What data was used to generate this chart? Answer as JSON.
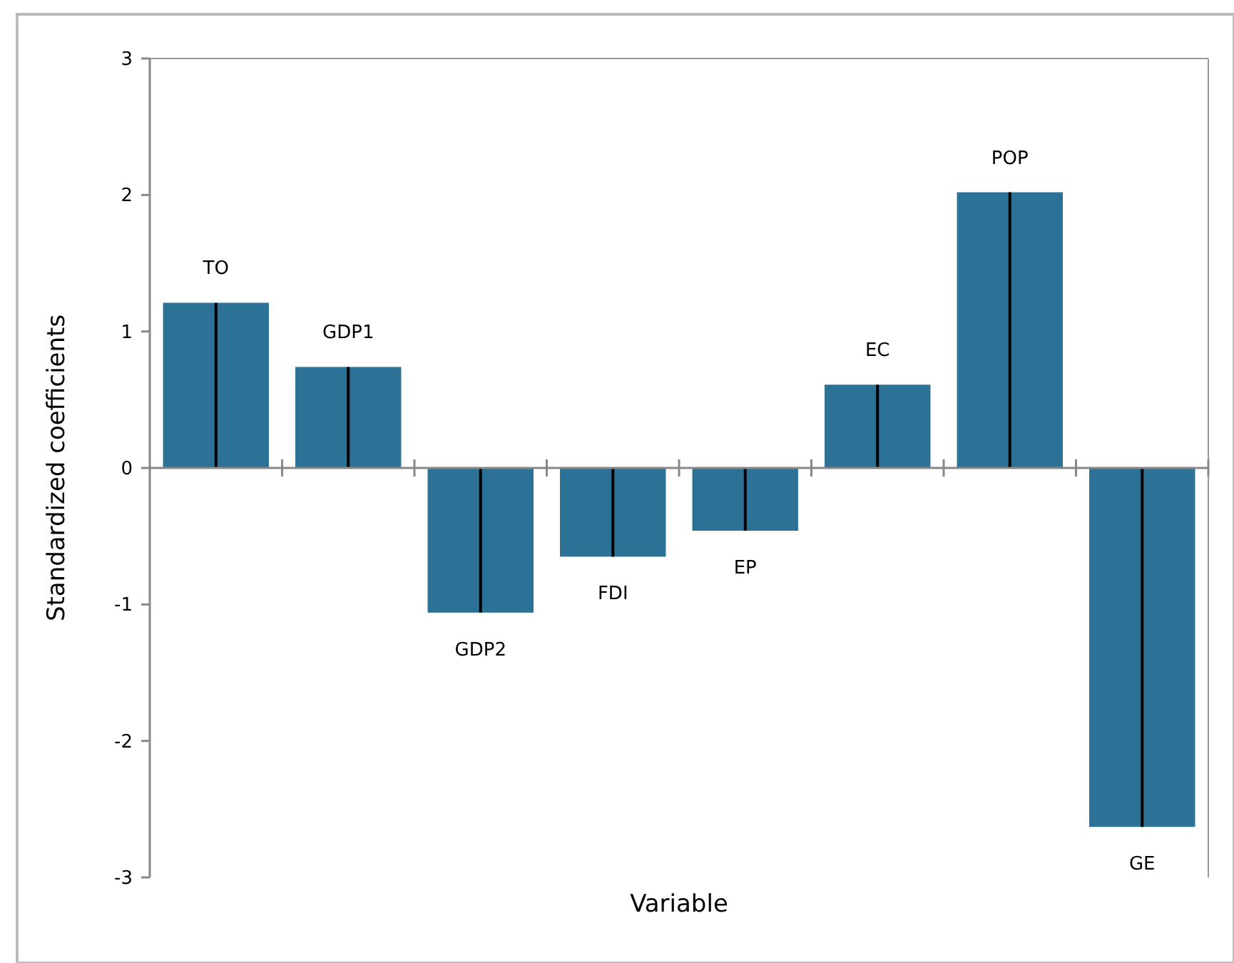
{
  "chart_data": {
    "type": "bar",
    "xlabel": "Variable",
    "ylabel": "Standardized coefficients",
    "categories": [
      "TO",
      "GDP1",
      "GDP2",
      "FDI",
      "EP",
      "EC",
      "POP",
      "GE"
    ],
    "values": [
      1.21,
      0.74,
      -1.06,
      -0.65,
      -0.46,
      0.61,
      2.02,
      -2.63
    ],
    "errors": [
      [
        0,
        1.21
      ],
      [
        0,
        0.74
      ],
      [
        -1.06,
        0
      ],
      [
        -0.65,
        0
      ],
      [
        -0.46,
        0
      ],
      [
        0,
        0.61
      ],
      [
        0,
        2.02
      ],
      [
        -2.63,
        0
      ]
    ],
    "color": "#2c7196",
    "ylim": [
      -3,
      3
    ],
    "yticks": [
      -3,
      -2,
      -1,
      0,
      1,
      2,
      3
    ]
  }
}
